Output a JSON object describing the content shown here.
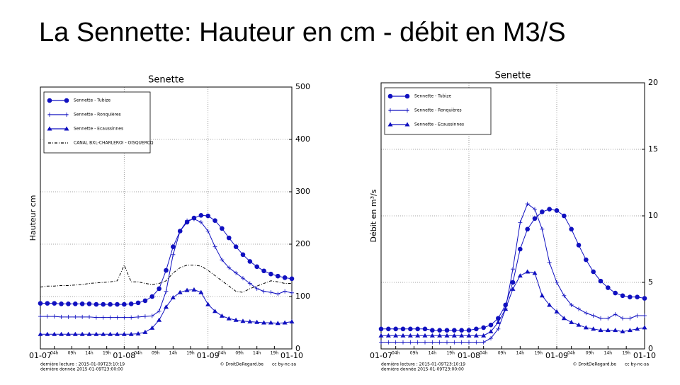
{
  "slide_title": "La Sennette: Hauteur en cm  -  débit en M3/S",
  "chart_data": [
    {
      "type": "line",
      "title": "Senette",
      "y_label": "Hauteur cm",
      "x": [
        0,
        2,
        4,
        6,
        8,
        10,
        12,
        14,
        16,
        18,
        20,
        22,
        24,
        26,
        28,
        30,
        32,
        34,
        36,
        38,
        40,
        42,
        44,
        46,
        48,
        50,
        52,
        54,
        56,
        58,
        60,
        62,
        64,
        66,
        68,
        70,
        72
      ],
      "xlim": [
        0,
        72
      ],
      "xticks": [
        {
          "value": 0,
          "label": "01-07"
        },
        {
          "value": 4,
          "label": "04h"
        },
        {
          "value": 9,
          "label": "09h"
        },
        {
          "value": 14,
          "label": "14h"
        },
        {
          "value": 19,
          "label": "19h"
        },
        {
          "value": 24,
          "label": "01-08"
        },
        {
          "value": 28,
          "label": "04h"
        },
        {
          "value": 33,
          "label": "09h"
        },
        {
          "value": 38,
          "label": "14h"
        },
        {
          "value": 43,
          "label": "19h"
        },
        {
          "value": 48,
          "label": "01-09"
        },
        {
          "value": 52,
          "label": "04h"
        },
        {
          "value": 57,
          "label": "09h"
        },
        {
          "value": 62,
          "label": "14h"
        },
        {
          "value": 67,
          "label": "19h"
        },
        {
          "value": 72,
          "label": "01-10"
        }
      ],
      "ylim": [
        0,
        500
      ],
      "yticks": [
        0,
        100,
        200,
        300,
        400,
        500
      ],
      "y_axis_side": "right",
      "grid": true,
      "legend": "upper left",
      "series": [
        {
          "name": "Sennette - Tubize",
          "color": "#1010c0",
          "marker": "circle",
          "linestyle": "solid",
          "values": [
            87,
            87,
            87,
            86,
            86,
            86,
            86,
            86,
            85,
            85,
            85,
            85,
            85,
            86,
            88,
            92,
            100,
            115,
            150,
            195,
            225,
            242,
            250,
            255,
            254,
            245,
            230,
            212,
            195,
            180,
            167,
            157,
            149,
            143,
            139,
            136,
            134
          ]
        },
        {
          "name": "Sennette - Ronquières",
          "color": "#1010c0",
          "marker": "plus",
          "linestyle": "solid",
          "values": [
            62,
            62,
            62,
            61,
            61,
            61,
            61,
            61,
            60,
            60,
            60,
            60,
            60,
            60,
            61,
            62,
            63,
            72,
            110,
            180,
            225,
            245,
            248,
            242,
            225,
            195,
            170,
            155,
            145,
            135,
            125,
            115,
            110,
            108,
            105,
            110,
            107
          ]
        },
        {
          "name": "Sennette - Ecaussinnes",
          "color": "#1010c0",
          "marker": "triangle",
          "linestyle": "solid",
          "values": [
            28,
            28,
            28,
            28,
            28,
            28,
            28,
            28,
            28,
            28,
            28,
            28,
            28,
            28,
            29,
            32,
            40,
            55,
            80,
            98,
            108,
            112,
            113,
            108,
            85,
            72,
            63,
            58,
            55,
            53,
            52,
            51,
            50,
            50,
            49,
            50,
            52
          ]
        },
        {
          "name": "CANAL BXL-CHARLEROI - OISQUERCQ",
          "color": "#000000",
          "marker": "none",
          "linestyle": "dashdot",
          "values": [
            118,
            120,
            120,
            121,
            121,
            122,
            123,
            125,
            126,
            127,
            128,
            130,
            160,
            128,
            128,
            125,
            123,
            125,
            130,
            145,
            155,
            160,
            160,
            158,
            150,
            140,
            130,
            120,
            110,
            108,
            115,
            120,
            125,
            130,
            128,
            125,
            125
          ]
        }
      ],
      "footnotes": [
        "dernière lecture : 2015-01-09T23:10:19",
        "dernière donnée  2015-01-09T23:00:00"
      ],
      "credit": "© DroitDeRegard.be",
      "license": "cc by-nc-sa"
    },
    {
      "type": "line",
      "title": "Senette",
      "y_label": "Débit en m³/s",
      "x": [
        0,
        2,
        4,
        6,
        8,
        10,
        12,
        14,
        16,
        18,
        20,
        22,
        24,
        26,
        28,
        30,
        32,
        34,
        36,
        38,
        40,
        42,
        44,
        46,
        48,
        50,
        52,
        54,
        56,
        58,
        60,
        62,
        64,
        66,
        68,
        70,
        72
      ],
      "xlim": [
        0,
        72
      ],
      "xticks": [
        {
          "value": 0,
          "label": "01-07"
        },
        {
          "value": 4,
          "label": "04h"
        },
        {
          "value": 9,
          "label": "09h"
        },
        {
          "value": 14,
          "label": "14h"
        },
        {
          "value": 19,
          "label": "19h"
        },
        {
          "value": 24,
          "label": "01-08"
        },
        {
          "value": 28,
          "label": "04h"
        },
        {
          "value": 33,
          "label": "09h"
        },
        {
          "value": 38,
          "label": "14h"
        },
        {
          "value": 43,
          "label": "19h"
        },
        {
          "value": 48,
          "label": "01-09"
        },
        {
          "value": 52,
          "label": "04h"
        },
        {
          "value": 57,
          "label": "09h"
        },
        {
          "value": 62,
          "label": "14h"
        },
        {
          "value": 67,
          "label": "19h"
        },
        {
          "value": 72,
          "label": "01-10"
        }
      ],
      "ylim": [
        0,
        20
      ],
      "yticks": [
        0,
        5,
        10,
        15,
        20
      ],
      "y_axis_side": "right",
      "grid": true,
      "legend": "upper left",
      "series": [
        {
          "name": "Sennette - Tubize",
          "color": "#1010c0",
          "marker": "circle",
          "linestyle": "solid",
          "values": [
            1.5,
            1.5,
            1.5,
            1.5,
            1.5,
            1.5,
            1.5,
            1.4,
            1.4,
            1.4,
            1.4,
            1.4,
            1.4,
            1.5,
            1.6,
            1.8,
            2.3,
            3.3,
            5,
            7.5,
            9,
            9.8,
            10.3,
            10.5,
            10.4,
            10,
            9,
            7.8,
            6.7,
            5.8,
            5.1,
            4.6,
            4.2,
            4,
            3.9,
            3.9,
            3.8
          ]
        },
        {
          "name": "Sennette - Ronquières",
          "color": "#1010c0",
          "marker": "plus",
          "linestyle": "solid",
          "values": [
            0.5,
            0.5,
            0.5,
            0.5,
            0.5,
            0.5,
            0.5,
            0.5,
            0.5,
            0.5,
            0.5,
            0.5,
            0.5,
            0.5,
            0.5,
            0.8,
            1.5,
            3,
            6,
            9.5,
            10.9,
            10.5,
            9,
            6.5,
            5,
            4,
            3.3,
            3,
            2.7,
            2.5,
            2.3,
            2.3,
            2.6,
            2.3,
            2.3,
            2.5,
            2.5
          ]
        },
        {
          "name": "Sennette - Ecaussinnes",
          "color": "#1010c0",
          "marker": "triangle",
          "linestyle": "solid",
          "values": [
            1,
            1,
            1,
            1,
            1,
            1,
            1,
            1,
            1,
            1,
            1,
            1,
            1,
            1,
            1,
            1.3,
            2,
            3,
            4.5,
            5.5,
            5.8,
            5.7,
            4,
            3.3,
            2.8,
            2.3,
            2,
            1.8,
            1.6,
            1.5,
            1.4,
            1.4,
            1.4,
            1.3,
            1.4,
            1.5,
            1.6
          ]
        }
      ],
      "footnotes": [
        "dernière lecture : 2015-01-09T23:10:19",
        "dernière donnée  2015-01-09T23:00:00"
      ],
      "credit": "© DroitDeRegard.be",
      "license": "cc by-nc-sa"
    }
  ]
}
